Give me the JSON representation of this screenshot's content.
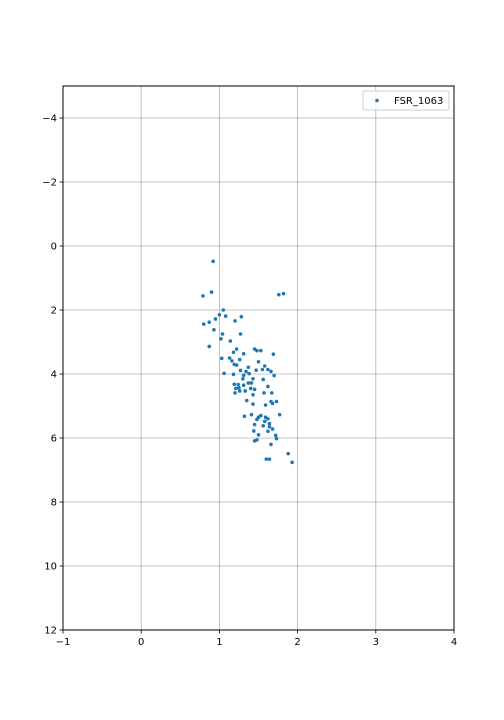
{
  "chart_data": {
    "type": "scatter",
    "title": "",
    "xlabel": "",
    "ylabel": "",
    "xlim": [
      -1,
      4
    ],
    "ylim": [
      12,
      -5
    ],
    "y_inverted": true,
    "grid": true,
    "legend": {
      "placement": "top-right"
    },
    "x_ticks": [
      -1,
      0,
      1,
      2,
      3,
      4
    ],
    "x_tick_labels": [
      "−1",
      "0",
      "1",
      "2",
      "3",
      "4"
    ],
    "y_ticks": [
      -4,
      -2,
      0,
      2,
      4,
      6,
      8,
      10,
      12
    ],
    "y_tick_labels": [
      "−4",
      "−2",
      "0",
      "2",
      "4",
      "6",
      "8",
      "10",
      "12"
    ],
    "series": [
      {
        "name": "FSR_1063",
        "color": "#1f77b4",
        "points": [
          [
            0.92,
            0.48
          ],
          [
            0.9,
            1.44
          ],
          [
            0.79,
            1.56
          ],
          [
            1.76,
            1.52
          ],
          [
            1.82,
            1.49
          ],
          [
            1.05,
            2.0
          ],
          [
            1.0,
            2.15
          ],
          [
            1.08,
            2.19
          ],
          [
            0.95,
            2.28
          ],
          [
            1.28,
            2.21
          ],
          [
            1.2,
            2.34
          ],
          [
            0.87,
            2.38
          ],
          [
            0.8,
            2.44
          ],
          [
            0.93,
            2.62
          ],
          [
            1.04,
            2.75
          ],
          [
            1.27,
            2.75
          ],
          [
            1.02,
            2.9
          ],
          [
            1.14,
            2.97
          ],
          [
            0.87,
            3.14
          ],
          [
            1.22,
            3.22
          ],
          [
            1.45,
            3.22
          ],
          [
            1.48,
            3.27
          ],
          [
            1.53,
            3.27
          ],
          [
            1.18,
            3.32
          ],
          [
            1.31,
            3.37
          ],
          [
            1.69,
            3.38
          ],
          [
            1.03,
            3.51
          ],
          [
            1.13,
            3.5
          ],
          [
            1.16,
            3.59
          ],
          [
            1.26,
            3.55
          ],
          [
            1.5,
            3.62
          ],
          [
            1.19,
            3.7
          ],
          [
            1.22,
            3.72
          ],
          [
            1.58,
            3.75
          ],
          [
            1.37,
            3.79
          ],
          [
            1.55,
            3.86
          ],
          [
            1.62,
            3.86
          ],
          [
            1.27,
            3.89
          ],
          [
            1.34,
            3.92
          ],
          [
            1.47,
            3.88
          ],
          [
            1.06,
            3.98
          ],
          [
            1.18,
            4.01
          ],
          [
            1.31,
            4.04
          ],
          [
            1.38,
            3.99
          ],
          [
            1.66,
            3.92
          ],
          [
            1.7,
            4.05
          ],
          [
            1.3,
            4.15
          ],
          [
            1.43,
            4.15
          ],
          [
            1.56,
            4.17
          ],
          [
            1.37,
            4.28
          ],
          [
            1.41,
            4.28
          ],
          [
            1.19,
            4.32
          ],
          [
            1.24,
            4.33
          ],
          [
            1.31,
            4.35
          ],
          [
            1.62,
            4.39
          ],
          [
            1.21,
            4.45
          ],
          [
            1.25,
            4.43
          ],
          [
            1.4,
            4.45
          ],
          [
            1.45,
            4.48
          ],
          [
            1.26,
            4.53
          ],
          [
            1.33,
            4.53
          ],
          [
            1.2,
            4.59
          ],
          [
            1.57,
            4.59
          ],
          [
            1.67,
            4.59
          ],
          [
            1.43,
            4.65
          ],
          [
            1.35,
            4.83
          ],
          [
            1.66,
            4.86
          ],
          [
            1.73,
            4.86
          ],
          [
            1.68,
            4.92
          ],
          [
            1.43,
            4.94
          ],
          [
            1.59,
            4.97
          ],
          [
            1.77,
            5.27
          ],
          [
            1.32,
            5.32
          ],
          [
            1.41,
            5.27
          ],
          [
            1.53,
            5.3
          ],
          [
            1.5,
            5.35
          ],
          [
            1.59,
            5.35
          ],
          [
            1.48,
            5.42
          ],
          [
            1.62,
            5.4
          ],
          [
            1.58,
            5.48
          ],
          [
            1.64,
            5.55
          ],
          [
            1.45,
            5.58
          ],
          [
            1.56,
            5.62
          ],
          [
            1.64,
            5.65
          ],
          [
            1.68,
            5.72
          ],
          [
            1.44,
            5.78
          ],
          [
            1.62,
            5.79
          ],
          [
            1.5,
            5.9
          ],
          [
            1.72,
            5.92
          ],
          [
            1.73,
            6.02
          ],
          [
            1.48,
            6.06
          ],
          [
            1.45,
            6.09
          ],
          [
            1.66,
            6.2
          ],
          [
            1.88,
            6.49
          ],
          [
            1.6,
            6.66
          ],
          [
            1.64,
            6.66
          ],
          [
            1.93,
            6.76
          ]
        ]
      }
    ]
  }
}
